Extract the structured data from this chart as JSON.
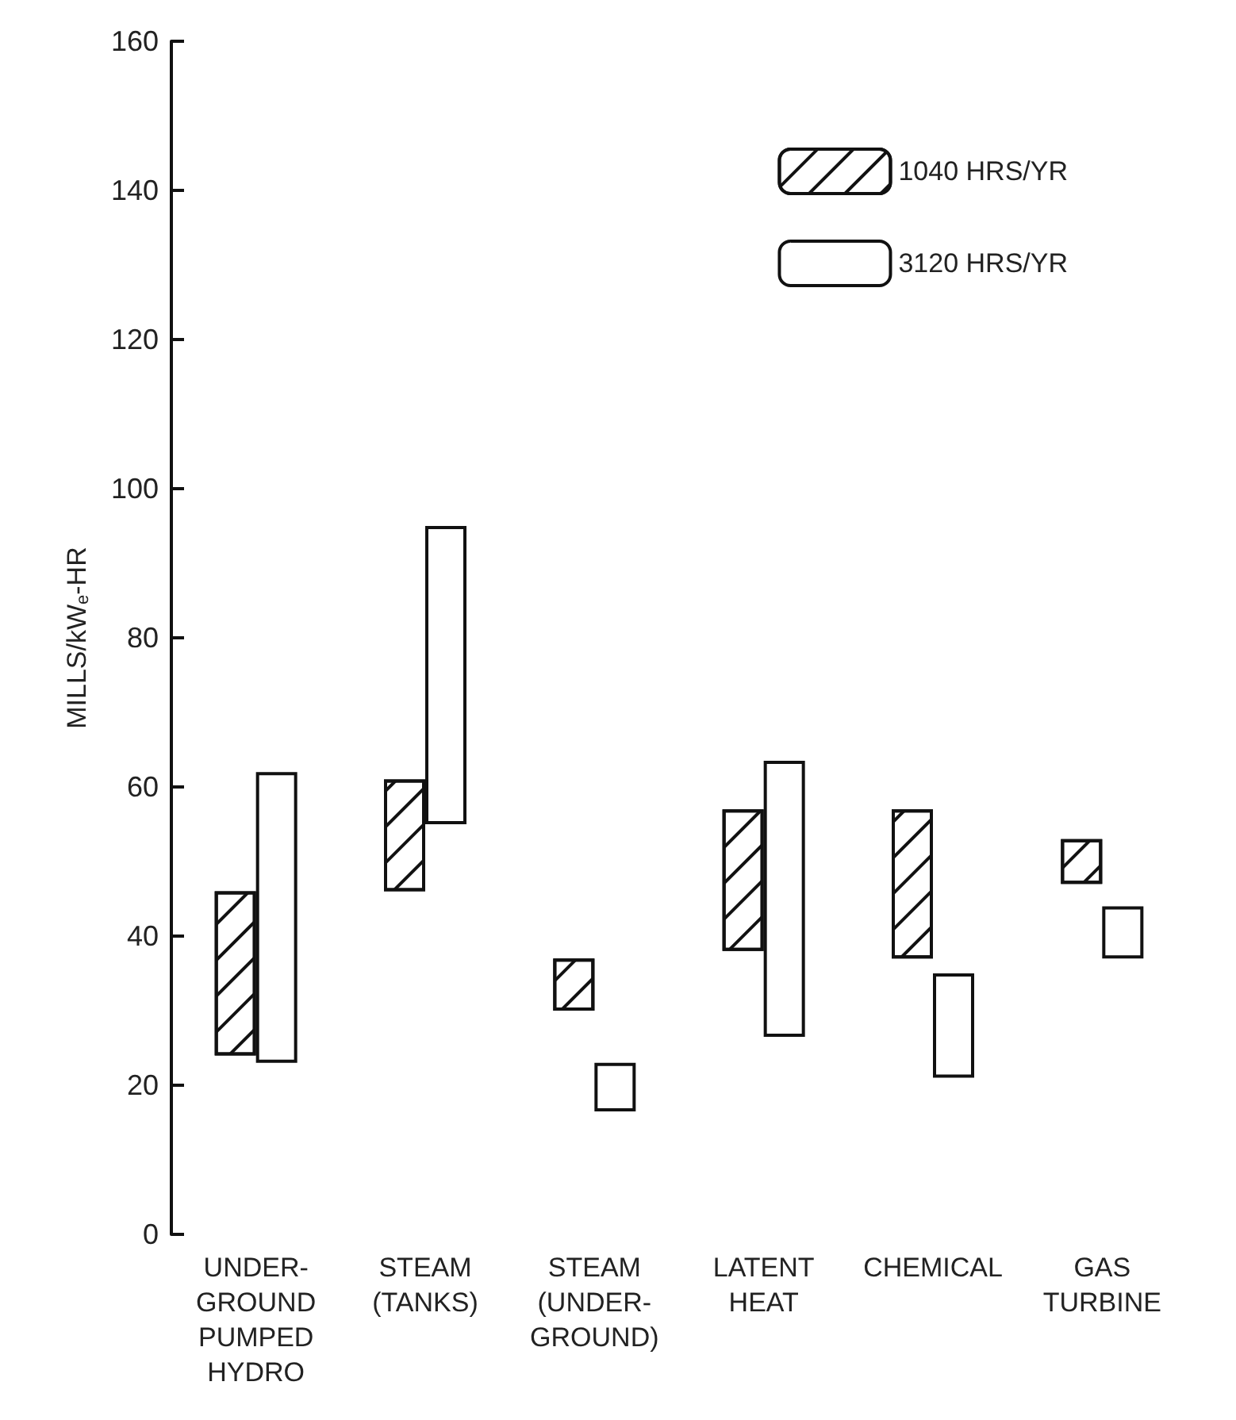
{
  "chart_data": {
    "type": "bar",
    "ylabel": "MILLS/kW$_{e}$-HR",
    "categories": [
      "UNDER-\nGROUND\nPUMPED\nHYDRO",
      "STEAM\n(TANKS)",
      "STEAM\n(UNDER-\nGROUND)",
      "LATENT\nHEAT",
      "CHEMICAL",
      "GAS\nTURBINE"
    ],
    "series": [
      {
        "name": "1040 HRS/YR",
        "color": "#ffffff",
        "base": [
          24,
          46,
          30,
          38,
          37,
          47
        ],
        "values": [
          22,
          15,
          7,
          19,
          20,
          6
        ]
      },
      {
        "name": "3120 HRS/YR",
        "color": "#ffffff",
        "base": [
          23,
          55,
          16.5,
          26.5,
          21,
          37
        ],
        "values": [
          39,
          40,
          6.5,
          37,
          14,
          7
        ]
      }
    ],
    "ylim": [
      0,
      160
    ],
    "yticks": [
      0,
      20,
      40,
      60,
      80,
      100,
      120,
      140,
      160
    ],
    "grid": false,
    "legend": "top right"
  }
}
